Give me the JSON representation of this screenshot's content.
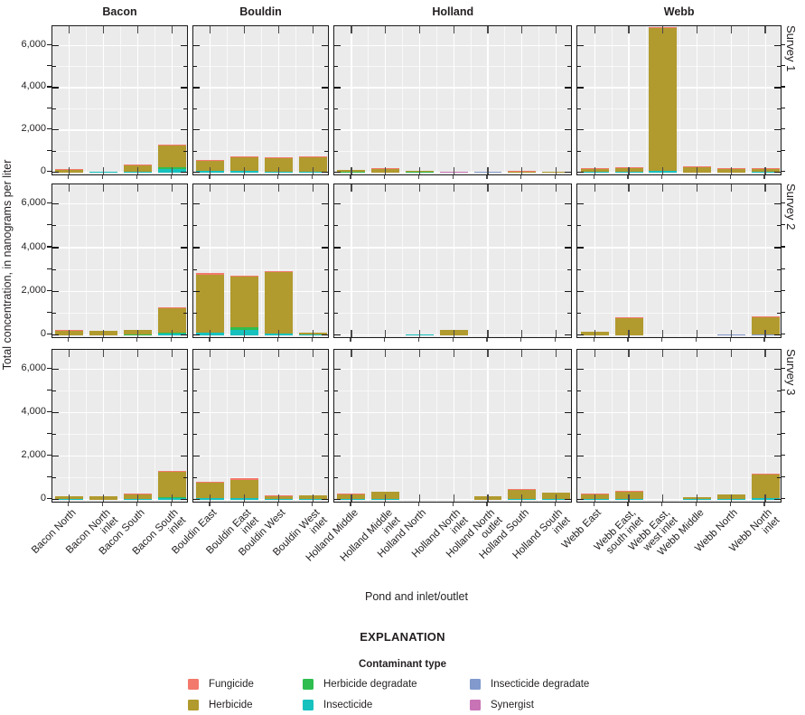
{
  "figure": {
    "y_axis_title": "Total concentration, in nanograms per liter",
    "x_axis_title": "Pond and inlet/outlet",
    "explanation_title": "EXPLANATION",
    "legend_title": "Contaminant type"
  },
  "colors": {
    "fun": "#F2796B",
    "her": "#B19A2E",
    "hdg": "#2FBD4F",
    "ins": "#15C2BE",
    "idg": "#8199CC",
    "syn": "#C873B5",
    "panel_background": "#EBEBEB",
    "panel_border": "#1A1A1A",
    "text": "#231F20"
  },
  "legend": {
    "columns": [
      [
        {
          "key": "fun",
          "label": "Fungicide"
        },
        {
          "key": "her",
          "label": "Herbicide"
        }
      ],
      [
        {
          "key": "hdg",
          "label": "Herbicide degradate"
        },
        {
          "key": "ins",
          "label": "Insecticide"
        }
      ],
      [
        {
          "key": "idg",
          "label": "Insecticide degradate"
        },
        {
          "key": "syn",
          "label": "Synergist"
        }
      ]
    ]
  },
  "chart_data": {
    "type": "bar",
    "stacked": true,
    "title": "",
    "xlabel": "Pond and inlet/outlet",
    "ylabel": "Total concentration, in nanograms per liter",
    "ylim": [
      0,
      6900
    ],
    "grid": true,
    "col_facets": [
      "Bacon",
      "Bouldin",
      "Holland",
      "Webb"
    ],
    "row_facets": [
      "Survey 1",
      "Survey 2",
      "Survey 3"
    ],
    "yticks": [
      {
        "v": 0,
        "label": "0"
      },
      {
        "v": 2000,
        "label": "2,000"
      },
      {
        "v": 4000,
        "label": "4,000"
      },
      {
        "v": 6000,
        "label": "6,000"
      }
    ],
    "yticks_minor": [
      1000,
      3000,
      5000
    ],
    "series_names": {
      "fun": "Fungicide",
      "her": "Herbicide",
      "hdg": "Herbicide degradate",
      "ins": "Insecticide",
      "idg": "Insecticide degradate",
      "syn": "Synergist"
    },
    "stack_order_bottom_to_top": [
      "syn",
      "idg",
      "ins",
      "hdg",
      "her",
      "fun"
    ],
    "categories": {
      "Bacon": [
        [
          "Bacon North"
        ],
        [
          "Bacon North",
          "inlet"
        ],
        [
          "Bacon South"
        ],
        [
          "Bacon South",
          "inlet"
        ]
      ],
      "Bouldin": [
        [
          "Bouldin East"
        ],
        [
          "Bouldin East",
          "inlet"
        ],
        [
          "Bouldin West"
        ],
        [
          "Bouldin West",
          "inlet"
        ]
      ],
      "Holland": [
        [
          "Holland Middle"
        ],
        [
          "Holland Middle",
          "inlet"
        ],
        [
          "Holland North"
        ],
        [
          "Holland North",
          "inlet"
        ],
        [
          "Holland North",
          "outlet"
        ],
        [
          "Holland South"
        ],
        [
          "Holland South",
          "inlet"
        ]
      ],
      "Webb": [
        [
          "Webb East"
        ],
        [
          "Webb East,",
          "south inlet"
        ],
        [
          "Webb East,",
          "west inlet"
        ],
        [
          "Webb Middle"
        ],
        [
          "Webb North"
        ],
        [
          "Webb North",
          "inlet"
        ]
      ]
    },
    "values": {
      "Survey 1": {
        "Bacon": [
          {
            "her": 120,
            "fun": 15
          },
          {
            "ins": 20
          },
          {
            "ins": 20,
            "her": 270,
            "fun": 15
          },
          {
            "ins": 170,
            "hdg": 60,
            "her": 1040,
            "fun": 30
          }
        ],
        "Bouldin": [
          {
            "ins": 70,
            "her": 470,
            "fun": 15
          },
          {
            "ins": 70,
            "her": 650,
            "fun": 25
          },
          {
            "ins": 30,
            "her": 620,
            "fun": 15
          },
          {
            "ins": 30,
            "her": 660,
            "fun": 15
          }
        ],
        "Holland": [
          {
            "hdg": 15,
            "her": 80
          },
          {
            "her": 140,
            "fun": 10
          },
          {
            "hdg": 30,
            "her": 15
          },
          {
            "syn": 10
          },
          {
            "idg": 40
          },
          {
            "her": 15,
            "fun": 40
          },
          {
            "her": 25
          }
        ],
        "Webb": [
          {
            "ins": 15,
            "her": 100,
            "fun": 20
          },
          {
            "ins": 15,
            "her": 150,
            "fun": 15
          },
          {
            "ins": 60,
            "her": 6750,
            "fun": 60
          },
          {
            "her": 240,
            "fun": 15
          },
          {
            "her": 150,
            "fun": 25
          },
          {
            "ins": 40,
            "her": 110,
            "fun": 10
          }
        ]
      },
      "Survey 2": {
        "Bacon": [
          {
            "her": 180,
            "fun": 10
          },
          {
            "her": 185
          },
          {
            "hdg": 20,
            "her": 190
          },
          {
            "ins": 60,
            "hdg": 60,
            "her": 1100,
            "fun": 20
          }
        ],
        "Bouldin": [
          {
            "ins": 100,
            "her": 2680,
            "fun": 20
          },
          {
            "ins": 240,
            "hdg": 120,
            "her": 2310,
            "fun": 30
          },
          {
            "ins": 50,
            "her": 2830,
            "fun": 25
          },
          {
            "ins": 15,
            "her": 10
          }
        ],
        "Holland": [
          {},
          {},
          {
            "ins": 25
          },
          {
            "her": 220
          },
          {},
          {},
          {}
        ],
        "Webb": [
          {
            "her": 170
          },
          {
            "her": 780,
            "fun": 15
          },
          {},
          {},
          {
            "idg": 25
          },
          {
            "idg": 25,
            "her": 760,
            "fun": 15
          }
        ]
      },
      "Survey 3": {
        "Bacon": [
          {
            "ins": 15,
            "her": 90
          },
          {
            "her": 140
          },
          {
            "ins": 20,
            "her": 200,
            "fun": 10
          },
          {
            "ins": 80,
            "hdg": 30,
            "her": 1150,
            "fun": 30
          }
        ],
        "Bouldin": [
          {
            "ins": 70,
            "her": 700,
            "fun": 25
          },
          {
            "ins": 80,
            "her": 840,
            "fun": 30
          },
          {
            "ins": 40,
            "her": 100,
            "fun": 10
          },
          {
            "ins": 40,
            "her": 130
          }
        ],
        "Holland": [
          {
            "ins": 30,
            "her": 200,
            "fun": 15
          },
          {
            "ins": 30,
            "her": 320
          },
          {},
          {},
          {
            "her": 170
          },
          {
            "ins": 30,
            "her": 400,
            "fun": 15
          },
          {
            "ins": 30,
            "her": 260
          }
        ],
        "Webb": [
          {
            "ins": 15,
            "her": 170,
            "fun": 20
          },
          {
            "ins": 15,
            "her": 330,
            "fun": 15
          },
          {},
          {
            "ins": 20,
            "her": 80
          },
          {
            "ins": 20,
            "her": 190
          },
          {
            "ins": 60,
            "her": 1100,
            "fun": 20
          }
        ]
      }
    }
  }
}
